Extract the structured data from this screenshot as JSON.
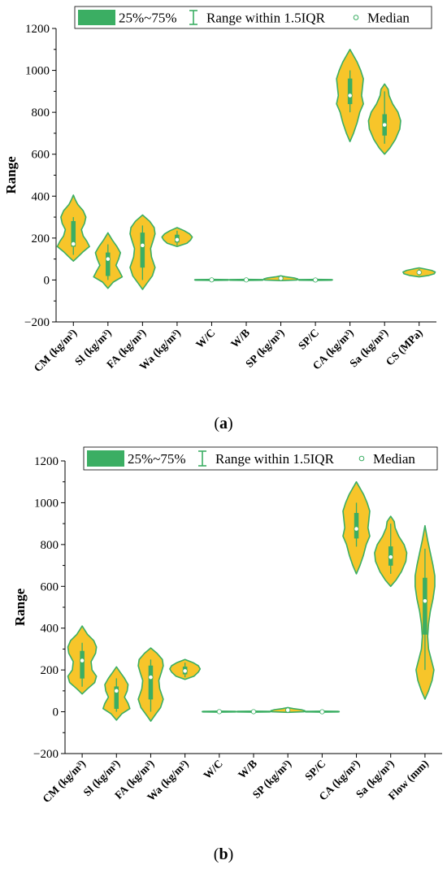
{
  "chart_data": [
    {
      "type": "violin",
      "caption": "(a)",
      "ylabel": "Range",
      "ylim": [
        -200,
        1200
      ],
      "yticks": [
        -200,
        0,
        200,
        400,
        600,
        800,
        1000,
        1200
      ],
      "legend": {
        "placement": "top",
        "box_label": "25%~75%",
        "whisker_label": "Range within 1.5IQR",
        "median_label": "Median"
      },
      "colors": {
        "fill": "#F7C52A",
        "outline": "#3BAE63"
      },
      "variables": [
        {
          "label": "CM (kg/m³)",
          "q1": 160,
          "median": 172,
          "q3": 280,
          "whisker_low": 120,
          "whisker_high": 300,
          "profile": [
            [
              90,
              0
            ],
            [
              110,
              10
            ],
            [
              135,
              22
            ],
            [
              160,
              36
            ],
            [
              185,
              30
            ],
            [
              210,
              22
            ],
            [
              240,
              18
            ],
            [
              270,
              25
            ],
            [
              300,
              28
            ],
            [
              330,
              22
            ],
            [
              360,
              10
            ],
            [
              380,
              5
            ],
            [
              405,
              0
            ]
          ]
        },
        {
          "label": "Sl (kg/m³)",
          "q1": 20,
          "median": 100,
          "q3": 130,
          "whisker_low": 0,
          "whisker_high": 170,
          "profile": [
            [
              -40,
              0
            ],
            [
              -10,
              12
            ],
            [
              15,
              32
            ],
            [
              40,
              26
            ],
            [
              70,
              18
            ],
            [
              100,
              24
            ],
            [
              130,
              28
            ],
            [
              160,
              20
            ],
            [
              190,
              10
            ],
            [
              225,
              0
            ]
          ]
        },
        {
          "label": "FA (kg/m³)",
          "q1": 60,
          "median": 165,
          "q3": 225,
          "whisker_low": 0,
          "whisker_high": 260,
          "profile": [
            [
              -45,
              0
            ],
            [
              -15,
              10
            ],
            [
              20,
              22
            ],
            [
              60,
              28
            ],
            [
              110,
              20
            ],
            [
              150,
              18
            ],
            [
              190,
              24
            ],
            [
              220,
              28
            ],
            [
              250,
              26
            ],
            [
              280,
              16
            ],
            [
              310,
              0
            ]
          ]
        },
        {
          "label": "Wa (kg/m³)",
          "q1": 180,
          "median": 192,
          "q3": 215,
          "whisker_low": 165,
          "whisker_high": 235,
          "profile": [
            [
              160,
              0
            ],
            [
              175,
              22
            ],
            [
              190,
              30
            ],
            [
              205,
              34
            ],
            [
              220,
              28
            ],
            [
              235,
              16
            ],
            [
              250,
              0
            ]
          ]
        },
        {
          "label": "W/C",
          "q1": 0,
          "median": 0.5,
          "q3": 1,
          "whisker_low": -1,
          "whisker_high": 2,
          "profile": [
            [
              -2,
              0
            ],
            [
              -1,
              36
            ],
            [
              0,
              38
            ],
            [
              1,
              38
            ],
            [
              2,
              36
            ],
            [
              3,
              0
            ]
          ]
        },
        {
          "label": "W/B",
          "q1": 0,
          "median": 0.4,
          "q3": 1,
          "whisker_low": -1,
          "whisker_high": 2,
          "profile": [
            [
              -2,
              0
            ],
            [
              -1,
              36
            ],
            [
              0,
              38
            ],
            [
              1,
              38
            ],
            [
              2,
              36
            ],
            [
              3,
              0
            ]
          ]
        },
        {
          "label": "SP (kg/m³)",
          "q1": 5,
          "median": 8,
          "q3": 12,
          "whisker_low": 0,
          "whisker_high": 16,
          "profile": [
            [
              -3,
              0
            ],
            [
              0,
              36
            ],
            [
              5,
              38
            ],
            [
              10,
              30
            ],
            [
              15,
              12
            ],
            [
              20,
              0
            ]
          ]
        },
        {
          "label": "SP/C",
          "q1": 0,
          "median": 0.01,
          "q3": 1,
          "whisker_low": -1,
          "whisker_high": 2,
          "profile": [
            [
              -2,
              0
            ],
            [
              -1,
              36
            ],
            [
              0,
              38
            ],
            [
              1,
              38
            ],
            [
              2,
              36
            ],
            [
              3,
              0
            ]
          ]
        },
        {
          "label": "CA (kg/m³)",
          "q1": 840,
          "median": 880,
          "q3": 960,
          "whisker_low": 800,
          "whisker_high": 1000,
          "profile": [
            [
              660,
              0
            ],
            [
              700,
              8
            ],
            [
              750,
              16
            ],
            [
              800,
              22
            ],
            [
              840,
              30
            ],
            [
              880,
              26
            ],
            [
              920,
              28
            ],
            [
              960,
              30
            ],
            [
              1000,
              24
            ],
            [
              1040,
              16
            ],
            [
              1070,
              8
            ],
            [
              1100,
              0
            ]
          ]
        },
        {
          "label": "Sa (kg/m³)",
          "q1": 690,
          "median": 740,
          "q3": 790,
          "whisker_low": 650,
          "whisker_high": 900,
          "profile": [
            [
              600,
              0
            ],
            [
              630,
              12
            ],
            [
              670,
              24
            ],
            [
              720,
              34
            ],
            [
              760,
              36
            ],
            [
              800,
              30
            ],
            [
              840,
              18
            ],
            [
              880,
              10
            ],
            [
              910,
              8
            ],
            [
              935,
              0
            ]
          ]
        },
        {
          "label": "CS (MPa)",
          "q1": 30,
          "median": 36,
          "q3": 42,
          "whisker_low": 22,
          "whisker_high": 52,
          "profile": [
            [
              15,
              0
            ],
            [
              22,
              22
            ],
            [
              30,
              34
            ],
            [
              38,
              36
            ],
            [
              46,
              28
            ],
            [
              52,
              14
            ],
            [
              58,
              0
            ]
          ]
        }
      ]
    },
    {
      "type": "violin",
      "caption": "(b)",
      "ylabel": "Range",
      "ylim": [
        -200,
        1200
      ],
      "yticks": [
        -200,
        0,
        200,
        400,
        600,
        800,
        1000,
        1200
      ],
      "legend": {
        "placement": "top",
        "box_label": "25%~75%",
        "whisker_label": "Range within 1.5IQR",
        "median_label": "Median"
      },
      "colors": {
        "fill": "#F7C52A",
        "outline": "#3BAE63"
      },
      "variables": [
        {
          "label": "CM (kg/m³)",
          "q1": 160,
          "median": 245,
          "q3": 290,
          "whisker_low": 120,
          "whisker_high": 330,
          "profile": [
            [
              85,
              0
            ],
            [
              110,
              12
            ],
            [
              140,
              28
            ],
            [
              170,
              32
            ],
            [
              200,
              22
            ],
            [
              240,
              20
            ],
            [
              280,
              30
            ],
            [
              310,
              32
            ],
            [
              340,
              26
            ],
            [
              370,
              12
            ],
            [
              410,
              0
            ]
          ]
        },
        {
          "label": "Sl (kg/m³)",
          "q1": 15,
          "median": 100,
          "q3": 120,
          "whisker_low": 0,
          "whisker_high": 160,
          "profile": [
            [
              -40,
              0
            ],
            [
              -10,
              12
            ],
            [
              15,
              30
            ],
            [
              40,
              26
            ],
            [
              70,
              18
            ],
            [
              100,
              24
            ],
            [
              130,
              26
            ],
            [
              160,
              18
            ],
            [
              190,
              8
            ],
            [
              215,
              0
            ]
          ]
        },
        {
          "label": "FA (kg/m³)",
          "q1": 60,
          "median": 165,
          "q3": 220,
          "whisker_low": 0,
          "whisker_high": 250,
          "profile": [
            [
              -45,
              0
            ],
            [
              -15,
              10
            ],
            [
              20,
              22
            ],
            [
              60,
              28
            ],
            [
              110,
              20
            ],
            [
              150,
              18
            ],
            [
              190,
              24
            ],
            [
              220,
              28
            ],
            [
              250,
              26
            ],
            [
              280,
              14
            ],
            [
              305,
              0
            ]
          ]
        },
        {
          "label": "Wa (kg/m³)",
          "q1": 180,
          "median": 195,
          "q3": 215,
          "whisker_low": 165,
          "whisker_high": 235,
          "profile": [
            [
              155,
              0
            ],
            [
              170,
              20
            ],
            [
              190,
              30
            ],
            [
              205,
              34
            ],
            [
              220,
              30
            ],
            [
              235,
              18
            ],
            [
              250,
              0
            ]
          ]
        },
        {
          "label": "W/C",
          "q1": 0,
          "median": 0.5,
          "q3": 1,
          "whisker_low": -1,
          "whisker_high": 2,
          "profile": [
            [
              -2,
              0
            ],
            [
              -1,
              36
            ],
            [
              0,
              38
            ],
            [
              1,
              38
            ],
            [
              2,
              36
            ],
            [
              3,
              0
            ]
          ]
        },
        {
          "label": "W/B",
          "q1": 0,
          "median": 0.4,
          "q3": 1,
          "whisker_low": -1,
          "whisker_high": 2,
          "profile": [
            [
              -2,
              0
            ],
            [
              -1,
              36
            ],
            [
              0,
              38
            ],
            [
              1,
              38
            ],
            [
              2,
              36
            ],
            [
              3,
              0
            ]
          ]
        },
        {
          "label": "SP (kg/m³)",
          "q1": 5,
          "median": 8,
          "q3": 12,
          "whisker_low": 0,
          "whisker_high": 16,
          "profile": [
            [
              -3,
              0
            ],
            [
              0,
              36
            ],
            [
              5,
              38
            ],
            [
              10,
              30
            ],
            [
              15,
              12
            ],
            [
              20,
              0
            ]
          ]
        },
        {
          "label": "SP/C",
          "q1": 0,
          "median": 0.01,
          "q3": 1,
          "whisker_low": -1,
          "whisker_high": 2,
          "profile": [
            [
              -2,
              0
            ],
            [
              -1,
              36
            ],
            [
              0,
              38
            ],
            [
              1,
              38
            ],
            [
              2,
              36
            ],
            [
              3,
              0
            ]
          ]
        },
        {
          "label": "CA (kg/m³)",
          "q1": 830,
          "median": 875,
          "q3": 950,
          "whisker_low": 790,
          "whisker_high": 1000,
          "profile": [
            [
              660,
              0
            ],
            [
              700,
              8
            ],
            [
              750,
              16
            ],
            [
              800,
              22
            ],
            [
              840,
              30
            ],
            [
              880,
              26
            ],
            [
              920,
              28
            ],
            [
              960,
              30
            ],
            [
              1000,
              24
            ],
            [
              1040,
              16
            ],
            [
              1070,
              8
            ],
            [
              1100,
              0
            ]
          ]
        },
        {
          "label": "Sa (kg/m³)",
          "q1": 700,
          "median": 740,
          "q3": 790,
          "whisker_low": 660,
          "whisker_high": 900,
          "profile": [
            [
              600,
              0
            ],
            [
              630,
              12
            ],
            [
              670,
              24
            ],
            [
              720,
              34
            ],
            [
              760,
              36
            ],
            [
              800,
              30
            ],
            [
              840,
              18
            ],
            [
              880,
              10
            ],
            [
              910,
              8
            ],
            [
              935,
              0
            ]
          ]
        },
        {
          "label": "Flow (mm)",
          "q1": 370,
          "median": 530,
          "q3": 640,
          "whisker_low": 200,
          "whisker_high": 780,
          "profile": [
            [
              60,
              0
            ],
            [
              100,
              8
            ],
            [
              150,
              16
            ],
            [
              200,
              20
            ],
            [
              250,
              14
            ],
            [
              300,
              8
            ],
            [
              360,
              6
            ],
            [
              420,
              8
            ],
            [
              480,
              12
            ],
            [
              540,
              18
            ],
            [
              600,
              22
            ],
            [
              650,
              22
            ],
            [
              700,
              18
            ],
            [
              760,
              12
            ],
            [
              820,
              6
            ],
            [
              890,
              0
            ]
          ]
        }
      ]
    }
  ]
}
